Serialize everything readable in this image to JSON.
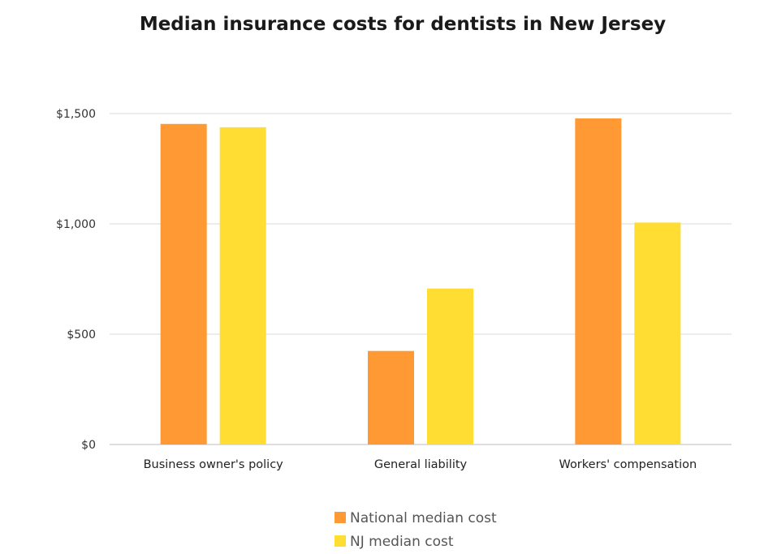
{
  "chart_data": {
    "type": "bar",
    "title": "Median insurance costs for dentists in New Jersey",
    "categories": [
      "Business owner's policy",
      "General liability",
      "Workers' compensation"
    ],
    "series": [
      {
        "name": "National median cost",
        "color": "#FF9933",
        "values": [
          1453,
          424,
          1478
        ]
      },
      {
        "name": "NJ median cost",
        "color": "#FFDD33",
        "values": [
          1438,
          707,
          1006
        ]
      }
    ],
    "ylim": [
      0,
      1500
    ],
    "yticks": [
      {
        "value": 0,
        "label": "$0"
      },
      {
        "value": 500,
        "label": "$500"
      },
      {
        "value": 1000,
        "label": "$1,000"
      },
      {
        "value": 1500,
        "label": "$1,500"
      }
    ],
    "grid": true,
    "legend_position": "bottom"
  }
}
